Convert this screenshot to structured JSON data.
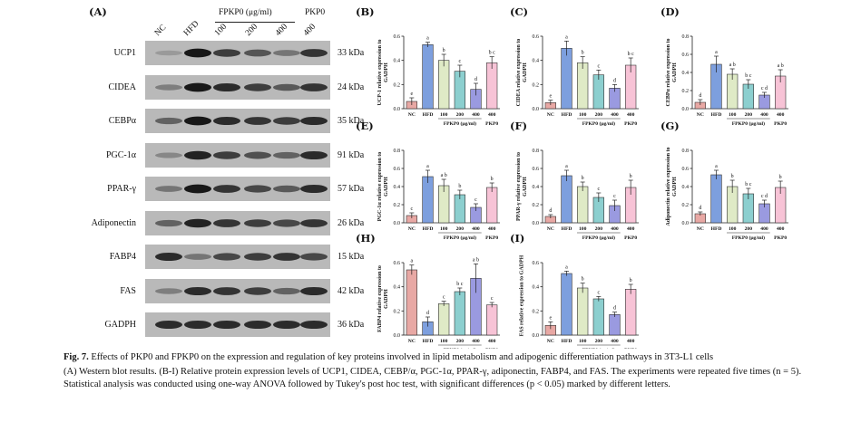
{
  "panel_a": {
    "label": "(A)",
    "lanes": [
      "NC",
      "HFD",
      "100",
      "200",
      "400",
      "400"
    ],
    "group_label": "FPKP0 (μg/ml)",
    "group2_label": "PKP0",
    "proteins": [
      "UCP1",
      "CIDEA",
      "CEBPα",
      "PGC-1α",
      "PPAR-γ",
      "Adiponectin",
      "FABP4",
      "FAS",
      "GADPH"
    ],
    "sizes": [
      "33 kDa",
      "24 kDa",
      "35 kDa",
      "91 kDa",
      "57 kDa",
      "26 kDa",
      "15 kDa",
      "42 kDa",
      "36 kDa"
    ],
    "band_intensities": [
      [
        0.25,
        0.95,
        0.75,
        0.62,
        0.45,
        0.8
      ],
      [
        0.4,
        0.95,
        0.85,
        0.75,
        0.6,
        0.8
      ],
      [
        0.55,
        0.95,
        0.85,
        0.8,
        0.75,
        0.85
      ],
      [
        0.35,
        0.9,
        0.75,
        0.65,
        0.55,
        0.85
      ],
      [
        0.45,
        0.95,
        0.8,
        0.7,
        0.6,
        0.85
      ],
      [
        0.55,
        0.9,
        0.8,
        0.75,
        0.7,
        0.8
      ],
      [
        0.85,
        0.45,
        0.7,
        0.75,
        0.8,
        0.7
      ],
      [
        0.4,
        0.85,
        0.8,
        0.75,
        0.55,
        0.85
      ],
      [
        0.85,
        0.85,
        0.85,
        0.85,
        0.85,
        0.85
      ]
    ]
  },
  "chart_data": [
    {
      "type": "bar",
      "panel": "(B)",
      "ylabel": "UCP-1 relative expression to GADPH",
      "categories": [
        "NC",
        "HFD",
        "100",
        "200",
        "400",
        "400"
      ],
      "values": [
        0.06,
        0.53,
        0.4,
        0.31,
        0.16,
        0.38
      ],
      "errors": [
        0.03,
        0.02,
        0.05,
        0.05,
        0.05,
        0.05
      ],
      "letters": [
        "e",
        "a",
        "b",
        "c",
        "d",
        "b c"
      ],
      "ylim": [
        0,
        0.6
      ],
      "ticks": [
        "0.0",
        "0.2",
        "0.4",
        "0.6"
      ],
      "group_label": "FPKP0 (μg/ml)",
      "group2_label": "PKP0"
    },
    {
      "type": "bar",
      "panel": "(C)",
      "ylabel": "CIDEA relative expression to GADPH",
      "categories": [
        "NC",
        "HFD",
        "100",
        "200",
        "400",
        "400"
      ],
      "values": [
        0.05,
        0.5,
        0.38,
        0.28,
        0.17,
        0.36
      ],
      "errors": [
        0.02,
        0.06,
        0.05,
        0.04,
        0.03,
        0.06
      ],
      "letters": [
        "e",
        "a",
        "b",
        "c",
        "d",
        "b c"
      ],
      "ylim": [
        0,
        0.6
      ],
      "ticks": [
        "0.0",
        "0.2",
        "0.4",
        "0.6"
      ],
      "group_label": "FPKP0 (μg/ml)",
      "group2_label": "PKP0"
    },
    {
      "type": "bar",
      "panel": "(D)",
      "ylabel": "CEBPα relative expression to GADPH",
      "categories": [
        "NC",
        "HFD",
        "100",
        "200",
        "400",
        "400"
      ],
      "values": [
        0.07,
        0.49,
        0.38,
        0.27,
        0.15,
        0.36
      ],
      "errors": [
        0.03,
        0.09,
        0.06,
        0.05,
        0.03,
        0.07
      ],
      "letters": [
        "d",
        "a",
        "a b",
        "b c",
        "c d",
        "a b"
      ],
      "ylim": [
        0,
        0.8
      ],
      "ticks": [
        "0.0",
        "0.2",
        "0.4",
        "0.6",
        "0.8"
      ],
      "group_label": "FPKP0 (μg/ml)",
      "group2_label": "PKP0"
    },
    {
      "type": "bar",
      "panel": "(E)",
      "ylabel": "PGC-1α relative expression to GADPH",
      "categories": [
        "NC",
        "HFD",
        "100",
        "200",
        "400",
        "400"
      ],
      "values": [
        0.08,
        0.51,
        0.41,
        0.31,
        0.17,
        0.39
      ],
      "errors": [
        0.03,
        0.07,
        0.07,
        0.05,
        0.04,
        0.05
      ],
      "letters": [
        "c",
        "a",
        "a b",
        "b",
        "c",
        "b"
      ],
      "ylim": [
        0,
        0.8
      ],
      "ticks": [
        "0.0",
        "0.2",
        "0.4",
        "0.6",
        "0.8"
      ],
      "group_label": "FPKP0 (μg/ml)",
      "group2_label": "PKP0"
    },
    {
      "type": "bar",
      "panel": "(F)",
      "ylabel": "PPAR-γ relative expression to GADPH",
      "categories": [
        "NC",
        "HFD",
        "100",
        "200",
        "400",
        "400"
      ],
      "values": [
        0.07,
        0.52,
        0.4,
        0.28,
        0.19,
        0.39
      ],
      "errors": [
        0.02,
        0.06,
        0.05,
        0.05,
        0.06,
        0.08
      ],
      "letters": [
        "d",
        "a",
        "b",
        "c",
        "c",
        "b"
      ],
      "ylim": [
        0,
        0.8
      ],
      "ticks": [
        "0.0",
        "0.2",
        "0.4",
        "0.6",
        "0.8"
      ],
      "group_label": "FPKP0 (μg/ml)",
      "group2_label": "PKP0"
    },
    {
      "type": "bar",
      "panel": "(G)",
      "ylabel": "Adiponectin relative expression to GADPH",
      "categories": [
        "NC",
        "HFD",
        "100",
        "200",
        "400",
        "400"
      ],
      "values": [
        0.1,
        0.53,
        0.4,
        0.32,
        0.21,
        0.39
      ],
      "errors": [
        0.02,
        0.05,
        0.07,
        0.06,
        0.04,
        0.07
      ],
      "letters": [
        "d",
        "a",
        "b",
        "b c",
        "c d",
        "b"
      ],
      "ylim": [
        0,
        0.8
      ],
      "ticks": [
        "0.0",
        "0.2",
        "0.4",
        "0.6",
        "0.8"
      ],
      "group_label": "FPKP0 (μg/ml)",
      "group2_label": "PKP0"
    },
    {
      "type": "bar",
      "panel": "(H)",
      "ylabel": "FABP4 relative expression to GADPH",
      "categories": [
        "NC",
        "HFD",
        "100",
        "200",
        "400",
        "400"
      ],
      "values": [
        0.54,
        0.11,
        0.26,
        0.36,
        0.47,
        0.25
      ],
      "errors": [
        0.04,
        0.04,
        0.02,
        0.03,
        0.12,
        0.02
      ],
      "letters": [
        "a",
        "d",
        "c",
        "b c",
        "a b",
        "c"
      ],
      "ylim": [
        0,
        0.6
      ],
      "ticks": [
        "0.0",
        "0.2",
        "0.4",
        "0.6"
      ],
      "group_label": "FPKP0 (μg/ml)",
      "group2_label": "PKP0"
    },
    {
      "type": "bar",
      "panel": "(I)",
      "ylabel": "FAS relative expression to GADPH",
      "categories": [
        "NC",
        "HFD",
        "100",
        "200",
        "400",
        "400"
      ],
      "values": [
        0.08,
        0.51,
        0.39,
        0.3,
        0.17,
        0.38
      ],
      "errors": [
        0.03,
        0.02,
        0.04,
        0.02,
        0.02,
        0.04
      ],
      "letters": [
        "e",
        "a",
        "b",
        "c",
        "d",
        "b"
      ],
      "ylim": [
        0,
        0.6
      ],
      "ticks": [
        "0.0",
        "0.2",
        "0.4",
        "0.6"
      ],
      "group_label": "FPKP0 (μg/ml)",
      "group2_label": "PKP0"
    }
  ],
  "colors": {
    "bars": [
      "#e8a8a4",
      "#7d9fde",
      "#dfeac6",
      "#8ccfcf",
      "#9a9ae0",
      "#f7c3d6"
    ]
  },
  "caption": {
    "fig_label": "Fig. 7.",
    "title": "Effects of PKP0 and FPKP0 on the expression and regulation of key proteins involved in lipid metabolism and adipogenic differentiation pathways in 3T3-L1 cells",
    "body": "(A) Western blot results. (B-I) Relative protein expression levels of UCP1, CIDEA, CEBP/α, PGC-1α, PPAR-γ, adiponectin, FABP4, and FAS. The experiments were repeated five times (n = 5). Statistical analysis was conducted using one-way ANOVA followed by Tukey's post hoc test, with significant differences (p < 0.05) marked by different letters."
  }
}
